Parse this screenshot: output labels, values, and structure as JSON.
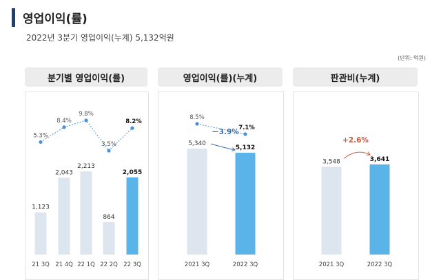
{
  "header": {
    "title": "영업이익(률)",
    "subtitle": "2022년 3분기 영업이익(누계) 5,132억원",
    "unit": "(단위: 억원)"
  },
  "colors": {
    "accent_bar": "#1f3f6e",
    "bar_prev": "#dde5ef",
    "bar_current": "#5ab4ea",
    "line": "#4a90d9",
    "change_negative": "#3a6ea5",
    "change_positive": "#d2563b"
  },
  "panels": [
    {
      "title": "분기별 영업이익(률)"
    },
    {
      "title": "영업이익(률)(누계)"
    },
    {
      "title": "판관비(누계)"
    }
  ],
  "chart_data": [
    {
      "type": "bar",
      "title": "분기별 영업이익(률)",
      "categories": [
        "21 3Q",
        "21 4Q",
        "22 1Q",
        "22 2Q",
        "22 3Q"
      ],
      "values": [
        1123,
        2043,
        2213,
        864,
        2055
      ],
      "value_labels": [
        "1,123",
        "2,043",
        "2,213",
        "864",
        "2,055"
      ],
      "ylim": [
        0,
        2600
      ],
      "line_series": {
        "values": [
          5.3,
          8.4,
          9.8,
          3.5,
          8.2
        ],
        "labels": [
          "5.3%",
          "8.4%",
          "9.8%",
          "3.5%",
          "8.2%"
        ],
        "ylim": [
          3.5,
          9.8
        ]
      },
      "highlight_index": 4,
      "grid": false
    },
    {
      "type": "bar",
      "title": "영업이익(률)(누계)",
      "categories": [
        "2021 3Q",
        "2022 3Q"
      ],
      "values": [
        5340,
        5132
      ],
      "value_labels": [
        "5,340",
        "5,132"
      ],
      "ylim": [
        0,
        6800
      ],
      "line_series": {
        "values": [
          8.5,
          7.1
        ],
        "labels": [
          "8.5%",
          "7.1%"
        ],
        "ylim": [
          7.1,
          8.5
        ]
      },
      "change_label": "－3.9%",
      "change_direction": "down",
      "highlight_index": 1,
      "grid": false
    },
    {
      "type": "bar",
      "title": "판관비(누계)",
      "categories": [
        "2021 3Q",
        "2022 3Q"
      ],
      "values": [
        3548,
        3641
      ],
      "value_labels": [
        "3,548",
        "3,641"
      ],
      "ylim": [
        0,
        5450
      ],
      "change_label": "+2.6%",
      "change_direction": "up",
      "highlight_index": 1,
      "grid": false
    }
  ]
}
